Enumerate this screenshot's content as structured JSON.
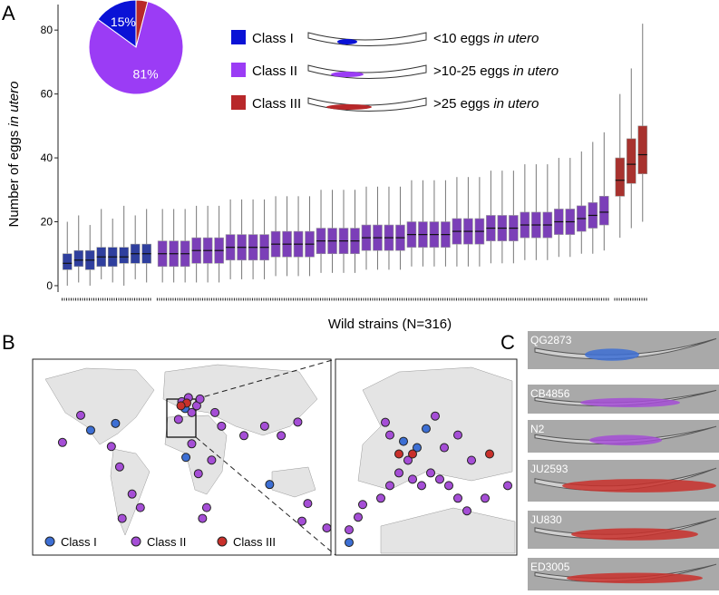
{
  "panel_labels": [
    "A",
    "B",
    "C"
  ],
  "chart_data": [
    {
      "type": "box",
      "ylabel": [
        "Number of eggs",
        "in utero"
      ],
      "xlabel": "Wild strains (N=316)",
      "ylim": [
        -2,
        88
      ],
      "yticks": [
        0,
        20,
        40,
        60,
        80
      ],
      "series": [
        {
          "name": "Class I",
          "color": "#2f3f9e",
          "note": "<10 eggs",
          "note_italic": "in utero",
          "boxes": [
            [
              0,
              5,
              7,
              10,
              20
            ],
            [
              1,
              6,
              8,
              11,
              22
            ],
            [
              0,
              5,
              8,
              11,
              19
            ],
            [
              2,
              6,
              9,
              12,
              24
            ],
            [
              1,
              6,
              9,
              12,
              21
            ],
            [
              0,
              7,
              9,
              12,
              25
            ],
            [
              2,
              7,
              10,
              13,
              22
            ],
            [
              1,
              7,
              10,
              13,
              24
            ]
          ]
        },
        {
          "name": "Class II",
          "color": "#7b3fb8",
          "note": ">10-25 eggs",
          "note_italic": "in utero",
          "boxes": [
            [
              1,
              6,
              10,
              14,
              24
            ],
            [
              1,
              6,
              10,
              14,
              24
            ],
            [
              1,
              6,
              10,
              14,
              24
            ],
            [
              1,
              7,
              11,
              15,
              25
            ],
            [
              1,
              7,
              11,
              15,
              25
            ],
            [
              1,
              7,
              11,
              15,
              25
            ],
            [
              2,
              8,
              12,
              16,
              27
            ],
            [
              2,
              8,
              12,
              16,
              27
            ],
            [
              2,
              8,
              12,
              16,
              27
            ],
            [
              2,
              8,
              12,
              16,
              27
            ],
            [
              3,
              9,
              13,
              17,
              28
            ],
            [
              3,
              9,
              13,
              17,
              28
            ],
            [
              3,
              9,
              13,
              17,
              28
            ],
            [
              3,
              9,
              13,
              17,
              28
            ],
            [
              4,
              10,
              14,
              18,
              30
            ],
            [
              4,
              10,
              14,
              18,
              30
            ],
            [
              4,
              10,
              14,
              18,
              30
            ],
            [
              4,
              10,
              14,
              18,
              30
            ],
            [
              5,
              11,
              15,
              19,
              31
            ],
            [
              5,
              11,
              15,
              19,
              31
            ],
            [
              5,
              11,
              15,
              19,
              31
            ],
            [
              5,
              11,
              15,
              19,
              31
            ],
            [
              6,
              12,
              16,
              20,
              33
            ],
            [
              6,
              12,
              16,
              20,
              33
            ],
            [
              6,
              12,
              16,
              20,
              33
            ],
            [
              6,
              12,
              16,
              20,
              33
            ],
            [
              6,
              13,
              17,
              21,
              34
            ],
            [
              6,
              13,
              17,
              21,
              34
            ],
            [
              6,
              13,
              17,
              21,
              34
            ],
            [
              7,
              14,
              18,
              22,
              36
            ],
            [
              7,
              14,
              18,
              22,
              36
            ],
            [
              7,
              14,
              18,
              22,
              36
            ],
            [
              8,
              15,
              19,
              23,
              38
            ],
            [
              8,
              15,
              19,
              23,
              38
            ],
            [
              8,
              15,
              19,
              23,
              38
            ],
            [
              9,
              16,
              20,
              24,
              40
            ],
            [
              9,
              16,
              20,
              24,
              40
            ],
            [
              10,
              17,
              21,
              25,
              42
            ],
            [
              10,
              18,
              22,
              26,
              45
            ],
            [
              11,
              19,
              23,
              28,
              48
            ]
          ]
        },
        {
          "name": "Class III",
          "color": "#a8322e",
          "note": ">25 eggs",
          "note_italic": "in utero",
          "boxes": [
            [
              15,
              28,
              33,
              40,
              60
            ],
            [
              18,
              32,
              38,
              46,
              68
            ],
            [
              20,
              35,
              41,
              50,
              82
            ]
          ]
        }
      ]
    },
    {
      "type": "pie",
      "categories": [
        "Class I",
        "Class II",
        "Class III"
      ],
      "values": [
        15,
        81,
        4
      ],
      "value_labels": [
        "15%",
        "81%",
        "4%"
      ],
      "colors": [
        "#0a12d6",
        "#9b3cf5",
        "#b8282a"
      ]
    }
  ],
  "map": {
    "colors": [
      "#3d6fd4",
      "#a54ed6",
      "#c9302b"
    ],
    "points": [
      {
        "lon": -110,
        "lat": 32,
        "class": 0
      },
      {
        "lon": -80,
        "lat": 37,
        "class": 0
      },
      {
        "lon": 5,
        "lat": 12,
        "class": 0
      },
      {
        "lon": 106,
        "lat": -8,
        "class": 0
      },
      {
        "lon": 4,
        "lat": 48,
        "class": 0
      },
      {
        "lon": -144,
        "lat": 23,
        "class": 1
      },
      {
        "lon": -122,
        "lat": 43,
        "class": 1
      },
      {
        "lon": -85,
        "lat": 20,
        "class": 1
      },
      {
        "lon": -75,
        "lat": 5,
        "class": 1
      },
      {
        "lon": -60,
        "lat": -15,
        "class": 1
      },
      {
        "lon": -72,
        "lat": -33,
        "class": 1
      },
      {
        "lon": -50,
        "lat": -25,
        "class": 1
      },
      {
        "lon": 12,
        "lat": 22,
        "class": 1
      },
      {
        "lon": 20,
        "lat": 0,
        "class": 1
      },
      {
        "lon": 30,
        "lat": -25,
        "class": 1
      },
      {
        "lon": 25,
        "lat": -33,
        "class": 1
      },
      {
        "lon": 36,
        "lat": 10,
        "class": 1
      },
      {
        "lon": 48,
        "lat": 35,
        "class": 1
      },
      {
        "lon": 75,
        "lat": 28,
        "class": 1
      },
      {
        "lon": 100,
        "lat": 35,
        "class": 1
      },
      {
        "lon": 120,
        "lat": 28,
        "class": 1
      },
      {
        "lon": 140,
        "lat": 38,
        "class": 1
      },
      {
        "lon": 145,
        "lat": -35,
        "class": 1
      },
      {
        "lon": 152,
        "lat": -22,
        "class": 1
      },
      {
        "lon": 175,
        "lat": -40,
        "class": 1
      },
      {
        "lon": 12,
        "lat": 45,
        "class": 1
      },
      {
        "lon": 18,
        "lat": 50,
        "class": 1
      },
      {
        "lon": -4,
        "lat": 40,
        "class": 1
      },
      {
        "lon": 22,
        "lat": 55,
        "class": 1
      },
      {
        "lon": 8,
        "lat": 56,
        "class": 1
      },
      {
        "lon": 40,
        "lat": 45,
        "class": 1
      },
      {
        "lon": 0,
        "lat": 53,
        "class": 1
      },
      {
        "lon": 6,
        "lat": 52,
        "class": 2
      },
      {
        "lon": -1,
        "lat": 50,
        "class": 2
      }
    ],
    "inset_points": [
      {
        "lon": -9,
        "lat": 39,
        "class": 1
      },
      {
        "lon": -8,
        "lat": 41,
        "class": 1
      },
      {
        "lon": -4,
        "lat": 42,
        "class": 1
      },
      {
        "lon": -2,
        "lat": 44,
        "class": 1
      },
      {
        "lon": 0,
        "lat": 46,
        "class": 1
      },
      {
        "lon": 2,
        "lat": 48,
        "class": 1
      },
      {
        "lon": 3,
        "lat": 45,
        "class": 1
      },
      {
        "lon": 5,
        "lat": 44,
        "class": 1
      },
      {
        "lon": 7,
        "lat": 46,
        "class": 1
      },
      {
        "lon": 9,
        "lat": 45,
        "class": 1
      },
      {
        "lon": 11,
        "lat": 44,
        "class": 1
      },
      {
        "lon": 13,
        "lat": 42,
        "class": 1
      },
      {
        "lon": 15,
        "lat": 40,
        "class": 1
      },
      {
        "lon": 10,
        "lat": 50,
        "class": 1
      },
      {
        "lon": 13,
        "lat": 52,
        "class": 1
      },
      {
        "lon": 16,
        "lat": 48,
        "class": 1
      },
      {
        "lon": 8,
        "lat": 55,
        "class": 1
      },
      {
        "lon": -3,
        "lat": 54,
        "class": 1
      },
      {
        "lon": -2,
        "lat": 52,
        "class": 1
      },
      {
        "lon": 1,
        "lat": 51,
        "class": 0
      },
      {
        "lon": 4,
        "lat": 50,
        "class": 0
      },
      {
        "lon": 6,
        "lat": 53,
        "class": 0
      },
      {
        "lon": -11,
        "lat": 37,
        "class": 1
      },
      {
        "lon": -11,
        "lat": 35,
        "class": 0
      },
      {
        "lon": 3,
        "lat": 49,
        "class": 2
      },
      {
        "lon": 0,
        "lat": 49,
        "class": 2
      },
      {
        "lon": 20,
        "lat": 49,
        "class": 2
      },
      {
        "lon": 24,
        "lat": 44,
        "class": 1
      },
      {
        "lon": 19,
        "lat": 42,
        "class": 1
      }
    ]
  },
  "images": [
    {
      "label": "QG2873",
      "class": 0
    },
    {
      "label": "CB4856",
      "class": 1
    },
    {
      "label": "N2",
      "class": 1
    },
    {
      "label": "JU2593",
      "class": 2
    },
    {
      "label": "JU830",
      "class": 2
    },
    {
      "label": "ED3005",
      "class": 2
    }
  ]
}
